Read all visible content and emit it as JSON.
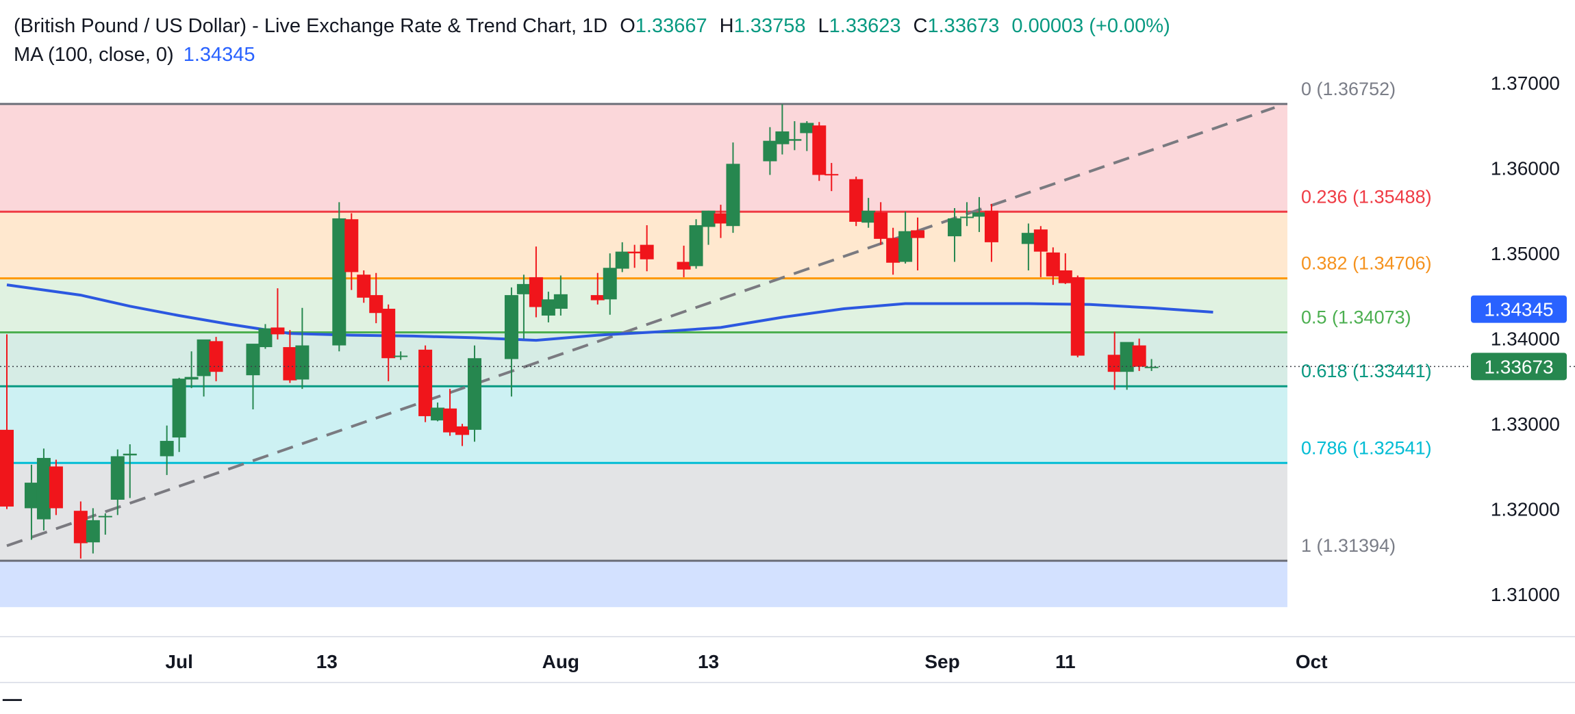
{
  "header": {
    "title": "(British Pound / US Dollar) - Live Exchange Rate & Trend Chart, 1D",
    "open_label": "O",
    "open": "1.33667",
    "high_label": "H",
    "high": "1.33758",
    "low_label": "L",
    "low": "1.33623",
    "close_label": "C",
    "close": "1.33673",
    "change": "0.00003 (+0.00%)"
  },
  "indicator": {
    "label": "MA (100, close, 0)",
    "value": "1.34345"
  },
  "colors": {
    "up": "#26874f",
    "down": "#f0151b",
    "ma": "#2c58e0",
    "trendline": "#7a7a80"
  },
  "chart_data": {
    "type": "candlestick",
    "symbol": "GBP/USD",
    "timeframe": "1D",
    "ylim": [
      1.3052,
      1.3757
    ],
    "y_ticks": [
      "1.37000",
      "1.36000",
      "1.35000",
      "1.34000",
      "1.33000",
      "1.32000",
      "1.31000"
    ],
    "y_tick_values": [
      1.37,
      1.36,
      1.35,
      1.34,
      1.33,
      1.32,
      1.31
    ],
    "x_ticks": [
      {
        "label": "Jul",
        "date": "2025-07-01"
      },
      {
        "label": "13",
        "date": "2025-07-13"
      },
      {
        "label": "Aug",
        "date": "2025-08-01"
      },
      {
        "label": "13",
        "date": "2025-08-13"
      },
      {
        "label": "Sep",
        "date": "2025-09-01"
      },
      {
        "label": "11",
        "date": "2025-09-11"
      },
      {
        "label": "Oct",
        "date": "2025-10-01"
      }
    ],
    "x_range": [
      "2025-06-17",
      "2025-10-11"
    ],
    "fibonacci": [
      {
        "label": "0",
        "value": "1.36752",
        "color": "#6b6e78",
        "text_color": "#7a7d87",
        "fill": "#fbd7da"
      },
      {
        "label": "0.236",
        "value": "1.35488",
        "color": "#ef3b44",
        "text_color": "#ef3b44",
        "fill": "#ffe8cf"
      },
      {
        "label": "0.382",
        "value": "1.34706",
        "color": "#ff9800",
        "text_color": "#f5921e",
        "fill": "#e0f2e1"
      },
      {
        "label": "0.5",
        "value": "1.34073",
        "color": "#4caf50",
        "text_color": "#4caf50",
        "fill": "#d6ece5"
      },
      {
        "label": "0.618",
        "value": "1.33441",
        "color": "#089981",
        "text_color": "#089981",
        "fill": "#cdf1f3"
      },
      {
        "label": "0.786",
        "value": "1.32541",
        "color": "#00bcd4",
        "text_color": "#00bcd4",
        "fill": "#e3e4e6"
      },
      {
        "label": "1",
        "value": "1.31394",
        "color": "#6b6e78",
        "text_color": "#7a7d87",
        "fill": "#d3e1ff"
      }
    ],
    "fib_zone_bottom": 1.3085,
    "trendline": [
      [
        "2025-06-17",
        1.3157
      ],
      [
        "2025-09-28",
        1.3671
      ]
    ],
    "ma_100": [
      [
        "2025-06-17",
        1.3463
      ],
      [
        "2025-06-23",
        1.3451
      ],
      [
        "2025-06-27",
        1.3438
      ],
      [
        "2025-07-01",
        1.3427
      ],
      [
        "2025-07-05",
        1.3417
      ],
      [
        "2025-07-10",
        1.3406
      ],
      [
        "2025-07-15",
        1.3404
      ],
      [
        "2025-07-20",
        1.3403
      ],
      [
        "2025-07-25",
        1.3401
      ],
      [
        "2025-07-30",
        1.3398
      ],
      [
        "2025-08-04",
        1.3404
      ],
      [
        "2025-08-09",
        1.3408
      ],
      [
        "2025-08-14",
        1.3413
      ],
      [
        "2025-08-19",
        1.3425
      ],
      [
        "2025-08-24",
        1.3435
      ],
      [
        "2025-08-29",
        1.3441
      ],
      [
        "2025-09-03",
        1.3441
      ],
      [
        "2025-09-08",
        1.3441
      ],
      [
        "2025-09-13",
        1.344
      ],
      [
        "2025-09-18",
        1.3436
      ],
      [
        "2025-09-23",
        1.3431
      ]
    ],
    "candles": [
      {
        "date": "2025-06-17",
        "o": 1.3293,
        "h": 1.3405,
        "l": 1.32,
        "c": 1.3203
      },
      {
        "date": "2025-06-19",
        "o": 1.3201,
        "h": 1.3252,
        "l": 1.3164,
        "c": 1.3231
      },
      {
        "date": "2025-06-20",
        "o": 1.3188,
        "h": 1.3271,
        "l": 1.3175,
        "c": 1.326
      },
      {
        "date": "2025-06-21",
        "o": 1.325,
        "h": 1.3258,
        "l": 1.3193,
        "c": 1.3201
      },
      {
        "date": "2025-06-23",
        "o": 1.3198,
        "h": 1.3209,
        "l": 1.3142,
        "c": 1.316
      },
      {
        "date": "2025-06-24",
        "o": 1.3161,
        "h": 1.3201,
        "l": 1.3148,
        "c": 1.3187
      },
      {
        "date": "2025-06-25",
        "o": 1.3191,
        "h": 1.3195,
        "l": 1.317,
        "c": 1.3192
      },
      {
        "date": "2025-06-26",
        "o": 1.3211,
        "h": 1.327,
        "l": 1.3193,
        "c": 1.3262
      },
      {
        "date": "2025-06-27",
        "o": 1.3263,
        "h": 1.3276,
        "l": 1.3213,
        "c": 1.3265
      },
      {
        "date": "2025-06-30",
        "o": 1.3262,
        "h": 1.3298,
        "l": 1.324,
        "c": 1.328
      },
      {
        "date": "2025-07-01",
        "o": 1.3284,
        "h": 1.3354,
        "l": 1.3267,
        "c": 1.3353
      },
      {
        "date": "2025-07-02",
        "o": 1.3352,
        "h": 1.3385,
        "l": 1.3342,
        "c": 1.3355
      },
      {
        "date": "2025-07-03",
        "o": 1.3356,
        "h": 1.3398,
        "l": 1.3332,
        "c": 1.3399
      },
      {
        "date": "2025-07-04",
        "o": 1.3397,
        "h": 1.3402,
        "l": 1.335,
        "c": 1.3361
      },
      {
        "date": "2025-07-07",
        "o": 1.3357,
        "h": 1.339,
        "l": 1.3317,
        "c": 1.3394
      },
      {
        "date": "2025-07-08",
        "o": 1.339,
        "h": 1.3417,
        "l": 1.3388,
        "c": 1.3412
      },
      {
        "date": "2025-07-09",
        "o": 1.3413,
        "h": 1.3459,
        "l": 1.3399,
        "c": 1.3405
      },
      {
        "date": "2025-07-10",
        "o": 1.339,
        "h": 1.341,
        "l": 1.3348,
        "c": 1.3351
      },
      {
        "date": "2025-07-11",
        "o": 1.3352,
        "h": 1.3436,
        "l": 1.3341,
        "c": 1.3392
      },
      {
        "date": "2025-07-14",
        "o": 1.3392,
        "h": 1.356,
        "l": 1.3385,
        "c": 1.3541
      },
      {
        "date": "2025-07-15",
        "o": 1.354,
        "h": 1.3547,
        "l": 1.3457,
        "c": 1.3478
      },
      {
        "date": "2025-07-16",
        "o": 1.3475,
        "h": 1.348,
        "l": 1.3442,
        "c": 1.3448
      },
      {
        "date": "2025-07-17",
        "o": 1.3451,
        "h": 1.3477,
        "l": 1.3418,
        "c": 1.343
      },
      {
        "date": "2025-07-18",
        "o": 1.3435,
        "h": 1.344,
        "l": 1.335,
        "c": 1.3377
      },
      {
        "date": "2025-07-19",
        "o": 1.338,
        "h": 1.3385,
        "l": 1.3375,
        "c": 1.338
      },
      {
        "date": "2025-07-21",
        "o": 1.3387,
        "h": 1.3392,
        "l": 1.3302,
        "c": 1.3309
      },
      {
        "date": "2025-07-22",
        "o": 1.3304,
        "h": 1.3325,
        "l": 1.3303,
        "c": 1.3319
      },
      {
        "date": "2025-07-23",
        "o": 1.3318,
        "h": 1.3341,
        "l": 1.3286,
        "c": 1.329
      },
      {
        "date": "2025-07-24",
        "o": 1.3297,
        "h": 1.33,
        "l": 1.3274,
        "c": 1.3287
      },
      {
        "date": "2025-07-25",
        "o": 1.3293,
        "h": 1.3392,
        "l": 1.3279,
        "c": 1.3377
      },
      {
        "date": "2025-07-28",
        "o": 1.3376,
        "h": 1.346,
        "l": 1.3332,
        "c": 1.3451
      },
      {
        "date": "2025-07-29",
        "o": 1.3452,
        "h": 1.3475,
        "l": 1.34,
        "c": 1.3464
      },
      {
        "date": "2025-07-30",
        "o": 1.3472,
        "h": 1.3508,
        "l": 1.3425,
        "c": 1.3437
      },
      {
        "date": "2025-07-31",
        "o": 1.3427,
        "h": 1.3455,
        "l": 1.3419,
        "c": 1.3446
      },
      {
        "date": "2025-08-01",
        "o": 1.3435,
        "h": 1.3474,
        "l": 1.3427,
        "c": 1.3452
      },
      {
        "date": "2025-08-04",
        "o": 1.3451,
        "h": 1.3477,
        "l": 1.344,
        "c": 1.3445
      },
      {
        "date": "2025-08-05",
        "o": 1.3446,
        "h": 1.35,
        "l": 1.3428,
        "c": 1.3483
      },
      {
        "date": "2025-08-06",
        "o": 1.3482,
        "h": 1.3513,
        "l": 1.3478,
        "c": 1.3502
      },
      {
        "date": "2025-08-07",
        "o": 1.3502,
        "h": 1.351,
        "l": 1.3483,
        "c": 1.35
      },
      {
        "date": "2025-08-08",
        "o": 1.351,
        "h": 1.3533,
        "l": 1.3479,
        "c": 1.3493
      },
      {
        "date": "2025-08-11",
        "o": 1.349,
        "h": 1.3509,
        "l": 1.3472,
        "c": 1.3481
      },
      {
        "date": "2025-08-12",
        "o": 1.3485,
        "h": 1.354,
        "l": 1.3482,
        "c": 1.3533
      },
      {
        "date": "2025-08-13",
        "o": 1.3531,
        "h": 1.355,
        "l": 1.351,
        "c": 1.355
      },
      {
        "date": "2025-08-14",
        "o": 1.3547,
        "h": 1.3557,
        "l": 1.3518,
        "c": 1.3535
      },
      {
        "date": "2025-08-15",
        "o": 1.3532,
        "h": 1.363,
        "l": 1.3524,
        "c": 1.3605
      },
      {
        "date": "2025-08-18",
        "o": 1.3608,
        "h": 1.3648,
        "l": 1.3592,
        "c": 1.3632
      },
      {
        "date": "2025-08-19",
        "o": 1.3628,
        "h": 1.3675,
        "l": 1.3616,
        "c": 1.3643
      },
      {
        "date": "2025-08-20",
        "o": 1.3632,
        "h": 1.3655,
        "l": 1.3621,
        "c": 1.3634
      },
      {
        "date": "2025-08-21",
        "o": 1.3641,
        "h": 1.3655,
        "l": 1.362,
        "c": 1.3653
      },
      {
        "date": "2025-08-22",
        "o": 1.365,
        "h": 1.3654,
        "l": 1.3585,
        "c": 1.3592
      },
      {
        "date": "2025-08-23",
        "o": 1.3593,
        "h": 1.3606,
        "l": 1.3573,
        "c": 1.3592
      },
      {
        "date": "2025-08-25",
        "o": 1.3587,
        "h": 1.359,
        "l": 1.3532,
        "c": 1.3537
      },
      {
        "date": "2025-08-26",
        "o": 1.3536,
        "h": 1.3565,
        "l": 1.353,
        "c": 1.355
      },
      {
        "date": "2025-08-27",
        "o": 1.3548,
        "h": 1.356,
        "l": 1.351,
        "c": 1.3517
      },
      {
        "date": "2025-08-28",
        "o": 1.3518,
        "h": 1.353,
        "l": 1.3475,
        "c": 1.3489
      },
      {
        "date": "2025-08-29",
        "o": 1.349,
        "h": 1.3549,
        "l": 1.3488,
        "c": 1.3526
      },
      {
        "date": "2025-08-30",
        "o": 1.3527,
        "h": 1.3542,
        "l": 1.348,
        "c": 1.3518
      },
      {
        "date": "2025-09-02",
        "o": 1.352,
        "h": 1.3553,
        "l": 1.349,
        "c": 1.3541
      },
      {
        "date": "2025-09-03",
        "o": 1.3542,
        "h": 1.356,
        "l": 1.3532,
        "c": 1.3543
      },
      {
        "date": "2025-09-04",
        "o": 1.3543,
        "h": 1.3566,
        "l": 1.3525,
        "c": 1.3548
      },
      {
        "date": "2025-09-05",
        "o": 1.355,
        "h": 1.3558,
        "l": 1.349,
        "c": 1.3513
      },
      {
        "date": "2025-09-08",
        "o": 1.3511,
        "h": 1.3535,
        "l": 1.348,
        "c": 1.3524
      },
      {
        "date": "2025-09-09",
        "o": 1.3528,
        "h": 1.3532,
        "l": 1.3472,
        "c": 1.3502
      },
      {
        "date": "2025-09-10",
        "o": 1.3501,
        "h": 1.3507,
        "l": 1.3463,
        "c": 1.3473
      },
      {
        "date": "2025-09-11",
        "o": 1.348,
        "h": 1.35,
        "l": 1.3464,
        "c": 1.3465
      },
      {
        "date": "2025-09-12",
        "o": 1.3472,
        "h": 1.3474,
        "l": 1.3378,
        "c": 1.338
      },
      {
        "date": "2025-09-15",
        "o": 1.3381,
        "h": 1.3408,
        "l": 1.334,
        "c": 1.3361
      },
      {
        "date": "2025-09-16",
        "o": 1.3361,
        "h": 1.3395,
        "l": 1.334,
        "c": 1.3396
      },
      {
        "date": "2025-09-17",
        "o": 1.3392,
        "h": 1.34,
        "l": 1.3362,
        "c": 1.3367
      },
      {
        "date": "2025-09-18",
        "o": 1.3367,
        "h": 1.3376,
        "l": 1.3362,
        "c": 1.3367
      }
    ],
    "last_price": {
      "value": "1.33673",
      "color": "#26874f"
    },
    "ma_price": {
      "value": "1.34345",
      "color": "#2962ff"
    }
  }
}
